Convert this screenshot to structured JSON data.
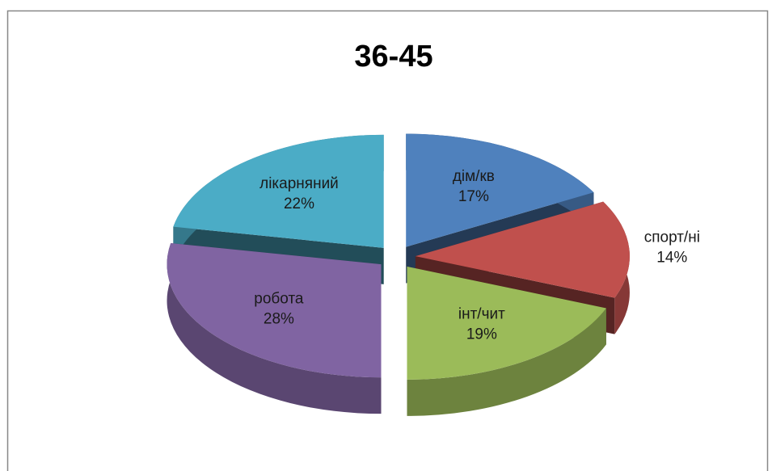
{
  "chart_data": {
    "type": "pie",
    "title": "36-45",
    "categories": [
      "дім/кв",
      "спорт/ні",
      "інт/чит",
      "робота",
      "лікарняний"
    ],
    "values": [
      17,
      14,
      19,
      28,
      22
    ],
    "value_labels": [
      "17%",
      "14%",
      "19%",
      "28%",
      "22%"
    ],
    "colors": [
      "#4f81bd",
      "#c0504d",
      "#9bbb59",
      "#8064a2",
      "#4bacc6"
    ]
  }
}
